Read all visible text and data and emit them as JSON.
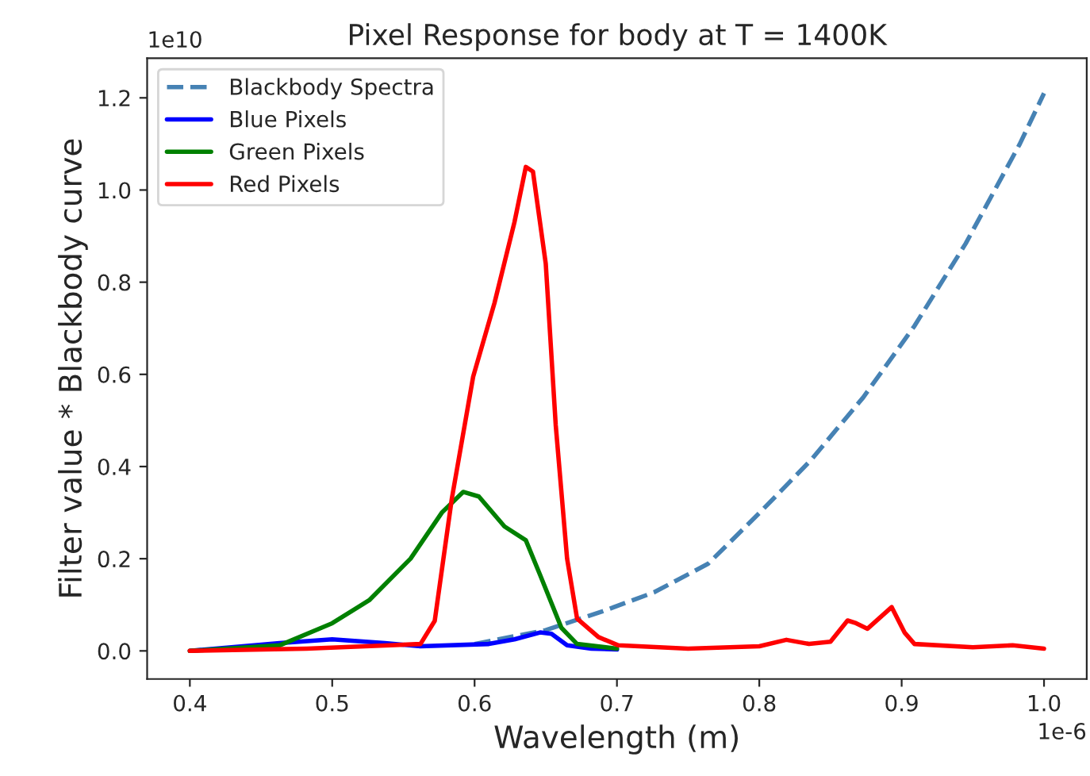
{
  "chart_data": {
    "type": "line",
    "title": "Pixel Response for body at T = 1400K",
    "xlabel": "Wavelength (m)",
    "ylabel": "Filter value * Blackbody curve",
    "annotations": [
      "1e10",
      "1e-6"
    ],
    "xlim": [
      0.37,
      1.03
    ],
    "ylim": [
      -0.061,
      1.286
    ],
    "xticks": [
      0.4,
      0.5,
      0.6,
      0.7,
      0.8,
      0.9,
      {
        "value": 1.0,
        "label": "1.0"
      }
    ],
    "yticks": [
      {
        "value": 0.0,
        "label": "0.0"
      },
      0.2,
      0.4,
      0.6,
      0.8,
      {
        "value": 1.0,
        "label": "1.0"
      },
      1.2
    ],
    "grid": false,
    "legend": "top left",
    "series": [
      {
        "name": "Blackbody Spectra",
        "color": "#4682b4",
        "line_style": "dashed",
        "x": [
          0.6,
          0.65,
          0.69,
          0.726,
          0.764,
          0.8,
          0.836,
          0.873,
          0.909,
          0.945,
          0.983,
          1.0
        ],
        "values": [
          0.015,
          0.045,
          0.086,
          0.127,
          0.189,
          0.299,
          0.413,
          0.55,
          0.705,
          0.884,
          1.1,
          1.21
        ]
      },
      {
        "name": "Blue Pixels",
        "color": "#0000ff",
        "line_style": "solid",
        "x": [
          0.4,
          0.463,
          0.5,
          0.537,
          0.562,
          0.61,
          0.628,
          0.646,
          0.654,
          0.665,
          0.682,
          0.7
        ],
        "values": [
          0.0,
          0.017,
          0.025,
          0.017,
          0.01,
          0.015,
          0.025,
          0.04,
          0.037,
          0.012,
          0.005,
          0.003
        ]
      },
      {
        "name": "Green Pixels",
        "color": "#008000",
        "line_style": "solid",
        "x": [
          0.4,
          0.463,
          0.5,
          0.526,
          0.555,
          0.577,
          0.592,
          0.603,
          0.621,
          0.636,
          0.646,
          0.661,
          0.672,
          0.7
        ],
        "values": [
          0.0,
          0.012,
          0.06,
          0.11,
          0.2,
          0.3,
          0.345,
          0.335,
          0.27,
          0.24,
          0.165,
          0.05,
          0.015,
          0.005
        ]
      },
      {
        "name": "Red Pixels",
        "color": "#ff0000",
        "line_style": "solid",
        "x": [
          0.4,
          0.482,
          0.562,
          0.572,
          0.584,
          0.599,
          0.614,
          0.628,
          0.636,
          0.641,
          0.65,
          0.657,
          0.665,
          0.672,
          0.687,
          0.701,
          0.75,
          0.8,
          0.819,
          0.835,
          0.85,
          0.862,
          0.868,
          0.876,
          0.893,
          0.902,
          0.909,
          0.95,
          0.978,
          1.0
        ],
        "values": [
          0.0,
          0.005,
          0.015,
          0.065,
          0.33,
          0.595,
          0.755,
          0.93,
          1.05,
          1.04,
          0.84,
          0.49,
          0.2,
          0.07,
          0.03,
          0.012,
          0.005,
          0.01,
          0.024,
          0.015,
          0.02,
          0.066,
          0.06,
          0.048,
          0.095,
          0.04,
          0.015,
          0.008,
          0.012,
          0.005
        ]
      }
    ]
  }
}
